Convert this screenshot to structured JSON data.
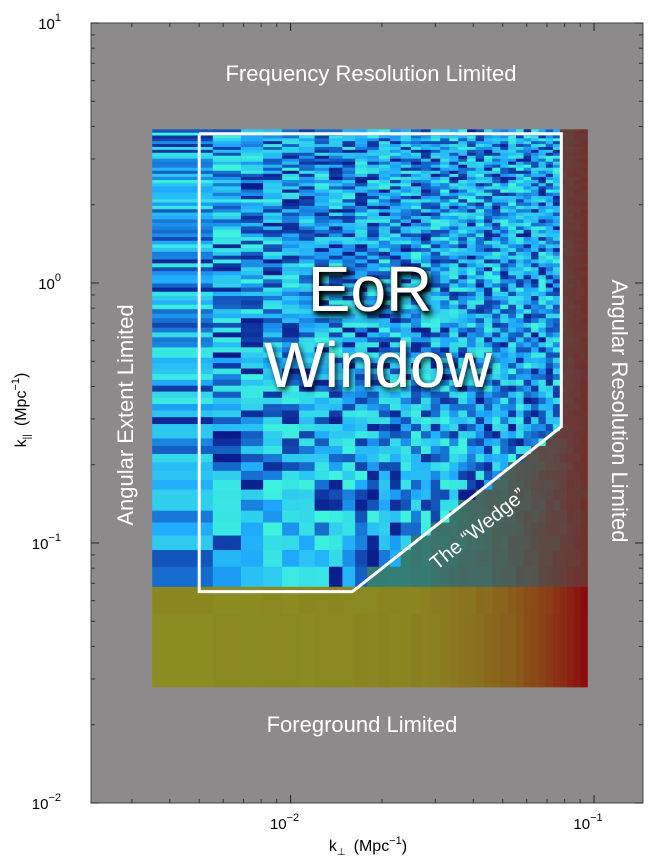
{
  "chart_data": {
    "type": "heatmap",
    "scale": "log-log",
    "xlabel": "k⊥ (Mpc⁻¹)",
    "ylabel": "k|| (Mpc⁻¹)",
    "xlabel_parts": {
      "base": "k",
      "sub": "⊥",
      "unit": "(Mpc",
      "unit_exp": "−1",
      "close": ")"
    },
    "ylabel_parts": {
      "base": "k",
      "sub": "||",
      "unit": "(Mpc",
      "unit_exp": "−1",
      "close": ")"
    },
    "xlim": [
      0.0022,
      0.145
    ],
    "ylim": [
      0.01,
      10
    ],
    "x_ticks": [
      {
        "value": 0.01,
        "base": "10",
        "exp": "−2"
      },
      {
        "value": 0.1,
        "base": "10",
        "exp": "−1"
      }
    ],
    "y_ticks": [
      {
        "value": 0.01,
        "base": "10",
        "exp": "−2"
      },
      {
        "value": 0.1,
        "base": "10",
        "exp": "−1"
      },
      {
        "value": 1,
        "base": "10",
        "exp": "0"
      },
      {
        "value": 10,
        "base": "10",
        "exp": "1"
      }
    ],
    "data_extent": {
      "x": [
        0.0035,
        0.095
      ],
      "y": [
        0.028,
        3.9
      ]
    },
    "eor_window": [
      [
        0.005,
        3.75
      ],
      [
        0.005,
        0.065
      ],
      [
        0.016,
        0.065
      ],
      [
        0.078,
        0.28
      ],
      [
        0.078,
        3.75
      ],
      [
        0.005,
        3.75
      ]
    ],
    "grid": false,
    "colors": {
      "background": "#8d8a8b",
      "outline": "#ffffff",
      "low": "#0a1a8a",
      "mid": "#1fa8ff",
      "high": "#3ff5dc",
      "foreground": "#8a8d22",
      "hot": "#8a1010"
    }
  },
  "annotations": {
    "top": "Frequency Resolution Limited",
    "bottom": "Foreground Limited",
    "left": "Angular Extent Limited",
    "right": "Angular Resolution Limited",
    "window_line1": "EoR",
    "window_line2": "Window",
    "wedge": "The “Wedge”"
  }
}
